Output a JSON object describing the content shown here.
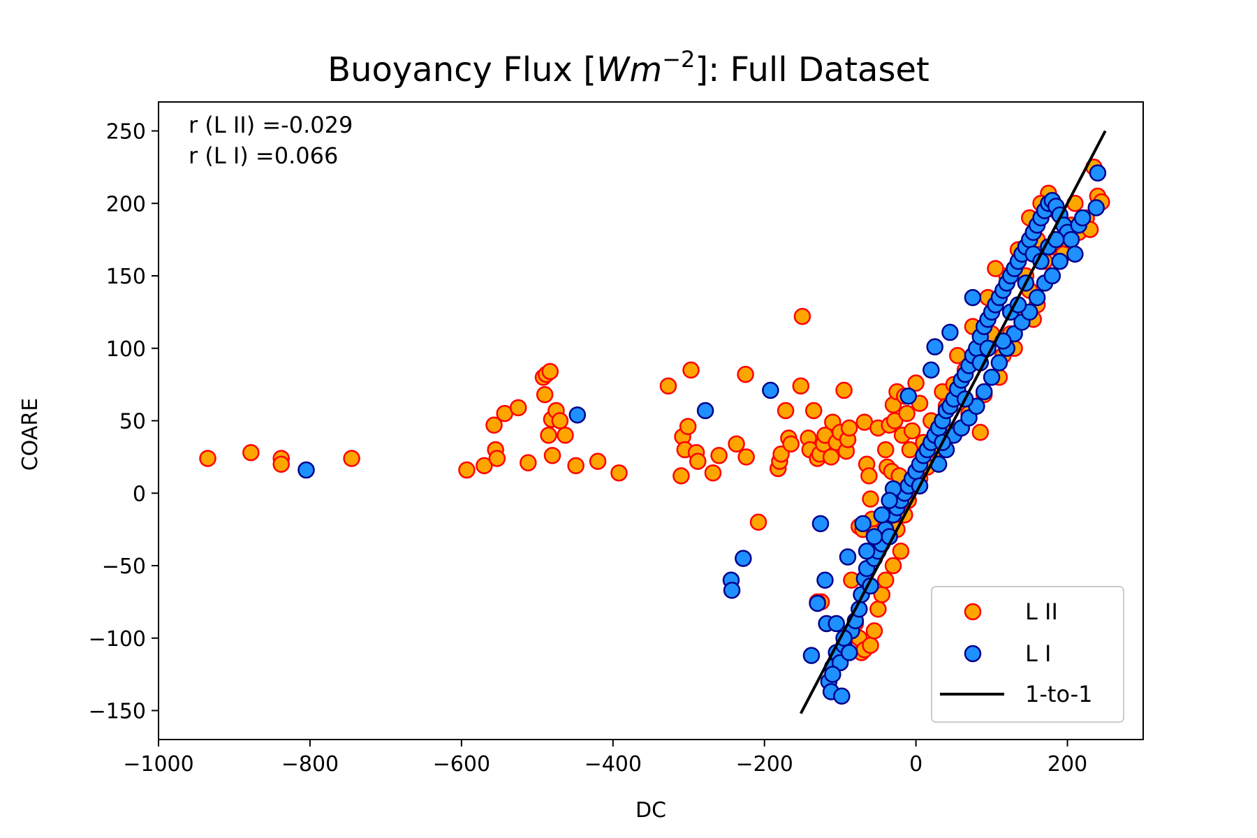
{
  "chart_data": {
    "type": "scatter",
    "title": "Buoyancy Flux [Wm⁻²]: Full Dataset",
    "title_parts": {
      "pre": "Buoyancy Flux [",
      "italic": "Wm",
      "sup": "−2",
      "post": "]: Full Dataset"
    },
    "xlabel": "DC",
    "ylabel": "COARE",
    "xlim": [
      -1000,
      300
    ],
    "ylim": [
      -170,
      270
    ],
    "x_ticks": [
      -1000,
      -800,
      -600,
      -400,
      -200,
      0,
      200
    ],
    "x_tick_labels": [
      "−1000",
      "−800",
      "−600",
      "−400",
      "−200",
      "0",
      "200"
    ],
    "y_ticks": [
      -150,
      -100,
      -50,
      0,
      50,
      100,
      150,
      200,
      250
    ],
    "y_tick_labels": [
      "−150",
      "−100",
      "−50",
      "0",
      "50",
      "100",
      "150",
      "200",
      "250"
    ],
    "grid": false,
    "legend_position": "lower right",
    "annotations": [
      "r (L II) =-0.029",
      "r (L I) =0.066"
    ],
    "series": [
      {
        "name": "L II",
        "fill": "#FFA500",
        "edge": "#FF0000",
        "points": [
          [
            -935,
            24
          ],
          [
            -878,
            28
          ],
          [
            -838,
            24
          ],
          [
            -838,
            20
          ],
          [
            -745,
            24
          ],
          [
            -593,
            16
          ],
          [
            -570,
            19
          ],
          [
            -557,
            47
          ],
          [
            -555,
            30
          ],
          [
            -553,
            24
          ],
          [
            -543,
            55
          ],
          [
            -525,
            59
          ],
          [
            -512,
            21
          ],
          [
            -492,
            80
          ],
          [
            -490,
            68
          ],
          [
            -488,
            82
          ],
          [
            -483,
            84
          ],
          [
            -485,
            40
          ],
          [
            -481,
            51
          ],
          [
            -480,
            26
          ],
          [
            -475,
            57
          ],
          [
            -470,
            50
          ],
          [
            -463,
            40
          ],
          [
            -449,
            19
          ],
          [
            -420,
            22
          ],
          [
            -392,
            14
          ],
          [
            -327,
            74
          ],
          [
            -310,
            12
          ],
          [
            -308,
            39
          ],
          [
            -305,
            30
          ],
          [
            -301,
            46
          ],
          [
            -297,
            85
          ],
          [
            -290,
            28
          ],
          [
            -288,
            22
          ],
          [
            -268,
            14
          ],
          [
            -260,
            26
          ],
          [
            -237,
            34
          ],
          [
            -225,
            82
          ],
          [
            -224,
            25
          ],
          [
            -208,
            -20
          ],
          [
            -182,
            17
          ],
          [
            -180,
            22
          ],
          [
            -178,
            27
          ],
          [
            -172,
            57
          ],
          [
            -168,
            38
          ],
          [
            -165,
            34
          ],
          [
            -150,
            122
          ],
          [
            -152,
            74
          ],
          [
            -142,
            38
          ],
          [
            -140,
            30
          ],
          [
            -135,
            57
          ],
          [
            -130,
            24
          ],
          [
            -127,
            27
          ],
          [
            -122,
            34
          ],
          [
            -120,
            40
          ],
          [
            -112,
            25
          ],
          [
            -110,
            49
          ],
          [
            -105,
            35
          ],
          [
            -100,
            42
          ],
          [
            -95,
            71
          ],
          [
            -92,
            29
          ],
          [
            -90,
            37
          ],
          [
            -88,
            45
          ],
          [
            -75,
            -23
          ],
          [
            -70,
            -25
          ],
          [
            -68,
            49
          ],
          [
            -65,
            20
          ],
          [
            -62,
            12
          ],
          [
            -60,
            -4
          ],
          [
            -58,
            -18
          ],
          [
            -55,
            -28
          ],
          [
            -50,
            45
          ],
          [
            -45,
            -34
          ],
          [
            -40,
            30
          ],
          [
            -38,
            18
          ],
          [
            -35,
            47
          ],
          [
            -32,
            15
          ],
          [
            -30,
            61
          ],
          [
            -28,
            50
          ],
          [
            -25,
            70
          ],
          [
            -22,
            12
          ],
          [
            -18,
            40
          ],
          [
            -15,
            67
          ],
          [
            -12,
            55
          ],
          [
            -8,
            30
          ],
          [
            -5,
            43
          ],
          [
            0,
            76
          ],
          [
            5,
            62
          ],
          [
            -125,
            -75
          ],
          [
            -130,
            -75
          ],
          [
            -85,
            -60
          ],
          [
            -80,
            -90
          ],
          [
            -75,
            -100
          ],
          [
            -72,
            -110
          ],
          [
            -68,
            -108
          ],
          [
            -60,
            -105
          ],
          [
            -55,
            -95
          ],
          [
            -50,
            -80
          ],
          [
            -45,
            -70
          ],
          [
            -40,
            -60
          ],
          [
            -30,
            -50
          ],
          [
            -20,
            -40
          ],
          [
            10,
            35
          ],
          [
            20,
            50
          ],
          [
            35,
            70
          ],
          [
            50,
            75
          ],
          [
            60,
            45
          ],
          [
            70,
            55
          ],
          [
            85,
            42
          ],
          [
            100,
            110
          ],
          [
            115,
            95
          ],
          [
            130,
            100
          ],
          [
            140,
            125
          ],
          [
            150,
            140
          ],
          [
            155,
            120
          ],
          [
            160,
            130
          ],
          [
            170,
            160
          ],
          [
            180,
            170
          ],
          [
            195,
            165
          ],
          [
            205,
            185
          ],
          [
            210,
            200
          ],
          [
            215,
            180
          ],
          [
            225,
            190
          ],
          [
            230,
            182
          ],
          [
            235,
            225
          ],
          [
            240,
            205
          ],
          [
            245,
            201
          ],
          [
            175,
            207
          ],
          [
            165,
            200
          ],
          [
            150,
            190
          ],
          [
            135,
            168
          ],
          [
            120,
            150
          ],
          [
            105,
            155
          ],
          [
            95,
            135
          ],
          [
            80,
            95
          ],
          [
            75,
            115
          ],
          [
            65,
            85
          ],
          [
            55,
            95
          ],
          [
            40,
            60
          ],
          [
            30,
            45
          ],
          [
            25,
            30
          ],
          [
            15,
            18
          ],
          [
            5,
            10
          ],
          [
            -3,
            5
          ],
          [
            -10,
            -5
          ],
          [
            -15,
            -15
          ],
          [
            -25,
            -25
          ],
          [
            45,
            42
          ],
          [
            90,
            68
          ],
          [
            110,
            80
          ],
          [
            125,
            110
          ],
          [
            145,
            150
          ],
          [
            160,
            175
          ],
          [
            185,
            195
          ],
          [
            200,
            175
          ]
        ]
      },
      {
        "name": "L I",
        "fill": "#1E90FF",
        "edge": "#00008B",
        "points": [
          [
            -805,
            16
          ],
          [
            -447,
            54
          ],
          [
            -278,
            57
          ],
          [
            -192,
            71
          ],
          [
            -244,
            -60
          ],
          [
            -243,
            -67
          ],
          [
            -228,
            -45
          ],
          [
            -138,
            -112
          ],
          [
            -130,
            -76
          ],
          [
            -126,
            -21
          ],
          [
            -120,
            -60
          ],
          [
            -118,
            -90
          ],
          [
            -115,
            -130
          ],
          [
            -112,
            -137
          ],
          [
            -110,
            -120
          ],
          [
            -105,
            -110
          ],
          [
            -100,
            -117
          ],
          [
            -95,
            -105
          ],
          [
            -90,
            -44
          ],
          [
            -85,
            -95
          ],
          [
            -80,
            -88
          ],
          [
            -75,
            -80
          ],
          [
            -72,
            -70
          ],
          [
            -70,
            -21
          ],
          [
            -68,
            -59
          ],
          [
            -65,
            -52
          ],
          [
            -60,
            -64
          ],
          [
            -55,
            -45
          ],
          [
            -50,
            -40
          ],
          [
            -45,
            -35
          ],
          [
            -40,
            -25
          ],
          [
            -35,
            -30
          ],
          [
            -30,
            -15
          ],
          [
            -25,
            -10
          ],
          [
            -20,
            -5
          ],
          [
            -15,
            0
          ],
          [
            -10,
            5
          ],
          [
            -5,
            10
          ],
          [
            0,
            15
          ],
          [
            5,
            20
          ],
          [
            10,
            26
          ],
          [
            15,
            30
          ],
          [
            20,
            35
          ],
          [
            25,
            40
          ],
          [
            30,
            45
          ],
          [
            35,
            50
          ],
          [
            40,
            57
          ],
          [
            45,
            60
          ],
          [
            50,
            65
          ],
          [
            55,
            72
          ],
          [
            60,
            78
          ],
          [
            65,
            82
          ],
          [
            70,
            88
          ],
          [
            75,
            95
          ],
          [
            80,
            100
          ],
          [
            85,
            108
          ],
          [
            90,
            115
          ],
          [
            95,
            120
          ],
          [
            100,
            125
          ],
          [
            105,
            130
          ],
          [
            110,
            135
          ],
          [
            115,
            140
          ],
          [
            120,
            145
          ],
          [
            125,
            150
          ],
          [
            130,
            155
          ],
          [
            135,
            160
          ],
          [
            140,
            165
          ],
          [
            145,
            170
          ],
          [
            150,
            175
          ],
          [
            155,
            180
          ],
          [
            160,
            185
          ],
          [
            165,
            190
          ],
          [
            170,
            195
          ],
          [
            175,
            200
          ],
          [
            180,
            202
          ],
          [
            185,
            198
          ],
          [
            190,
            192
          ],
          [
            195,
            185
          ],
          [
            200,
            180
          ],
          [
            205,
            175
          ],
          [
            210,
            165
          ],
          [
            215,
            185
          ],
          [
            220,
            190
          ],
          [
            238,
            197
          ],
          [
            240,
            221
          ],
          [
            -10,
            67
          ],
          [
            20,
            85
          ],
          [
            25,
            101
          ],
          [
            45,
            111
          ],
          [
            -30,
            3
          ],
          [
            -35,
            -5
          ],
          [
            -45,
            -15
          ],
          [
            30,
            20
          ],
          [
            40,
            30
          ],
          [
            50,
            40
          ],
          [
            60,
            45
          ],
          [
            70,
            52
          ],
          [
            80,
            60
          ],
          [
            90,
            70
          ],
          [
            100,
            80
          ],
          [
            110,
            90
          ],
          [
            120,
            100
          ],
          [
            130,
            110
          ],
          [
            140,
            118
          ],
          [
            150,
            125
          ],
          [
            160,
            135
          ],
          [
            170,
            145
          ],
          [
            180,
            150
          ],
          [
            190,
            160
          ],
          [
            155,
            165
          ],
          [
            125,
            125
          ],
          [
            95,
            100
          ],
          [
            65,
            65
          ],
          [
            35,
            35
          ],
          [
            5,
            5
          ],
          [
            -65,
            -40
          ],
          [
            -55,
            -30
          ],
          [
            75,
            135
          ],
          [
            85,
            90
          ],
          [
            115,
            105
          ],
          [
            135,
            130
          ],
          [
            145,
            145
          ],
          [
            165,
            160
          ],
          [
            175,
            170
          ],
          [
            185,
            175
          ],
          [
            -98,
            -140
          ],
          [
            -110,
            -125
          ],
          [
            -95,
            -100
          ],
          [
            -88,
            -110
          ],
          [
            -105,
            -90
          ]
        ]
      },
      {
        "name": "1-to-1",
        "color": "#000000",
        "line": [
          [
            -152,
            -152
          ],
          [
            250,
            250
          ]
        ]
      }
    ]
  }
}
